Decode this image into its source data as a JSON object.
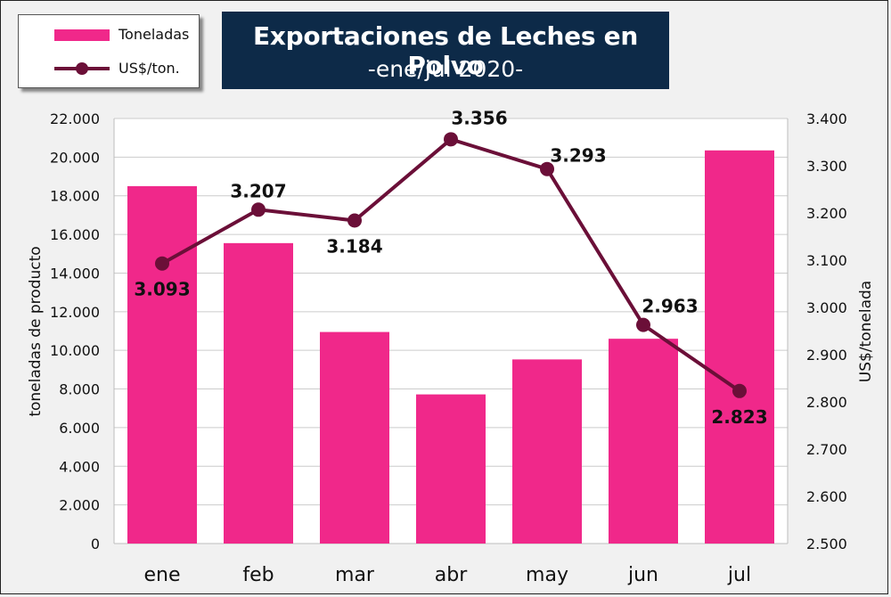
{
  "colors": {
    "bar": "#f0288a",
    "line": "#6b0f38",
    "title_bg": "#0d2a48",
    "plot_bg": "#ffffff",
    "grid": "#cccccc"
  },
  "chart_data": {
    "type": "bar",
    "title": "Exportaciones de Leches en Polvo",
    "subtitle": "-ene/jul 2020-",
    "categories": [
      "ene",
      "feb",
      "mar",
      "abr",
      "may",
      "jun",
      "jul"
    ],
    "series": [
      {
        "name": "Toneladas",
        "type": "bar",
        "axis": "left",
        "values": [
          18500,
          15550,
          10950,
          7720,
          9530,
          10600,
          20350
        ]
      },
      {
        "name": "US$/ton.",
        "type": "line",
        "axis": "right",
        "values": [
          3093,
          3207,
          3184,
          3356,
          3293,
          2963,
          2823
        ],
        "labels": [
          "3.093",
          "3.207",
          "3.184",
          "3.356",
          "3.293",
          "2.963",
          "2.823"
        ]
      }
    ],
    "ylabel": "toneladas de producto",
    "y2label": "US$/tonelada",
    "ylim": [
      0,
      22000
    ],
    "y2lim": [
      2500,
      3400
    ],
    "yticks": [
      "0",
      "2.000",
      "4.000",
      "6.000",
      "8.000",
      "10.000",
      "12.000",
      "14.000",
      "16.000",
      "18.000",
      "20.000",
      "22.000"
    ],
    "y2ticks": [
      "2.500",
      "2.600",
      "2.700",
      "2.800",
      "2.900",
      "3.000",
      "3.100",
      "3.200",
      "3.300",
      "3.400"
    ],
    "grid": true,
    "legend_position": "top-left"
  }
}
